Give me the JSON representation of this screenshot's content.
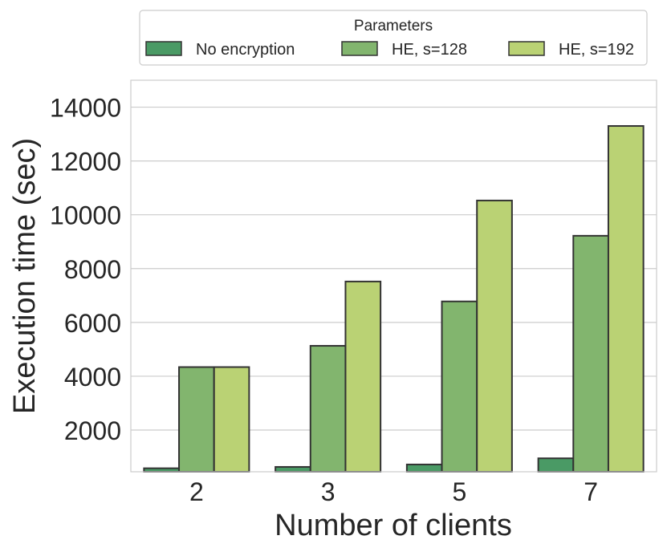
{
  "chart_data": {
    "type": "bar",
    "title": "",
    "xlabel": "Number of clients",
    "ylabel": "Execution time (sec)",
    "categories": [
      "2",
      "3",
      "5",
      "7"
    ],
    "ylim": [
      450,
      15000
    ],
    "yticks": [
      2000,
      4000,
      6000,
      8000,
      10000,
      12000,
      14000
    ],
    "grid": true,
    "legend": {
      "title": "Parameters",
      "placement": "top-center"
    },
    "series": [
      {
        "name": "No encryption",
        "color": "#4a9a65",
        "values": [
          580,
          630,
          720,
          950
        ]
      },
      {
        "name": "HE, s=128",
        "color": "#82b56e",
        "values": [
          4340,
          5130,
          6780,
          9220
        ]
      },
      {
        "name": "HE, s=192",
        "color": "#bad274",
        "values": [
          4340,
          7520,
          10530,
          13300
        ]
      }
    ]
  }
}
